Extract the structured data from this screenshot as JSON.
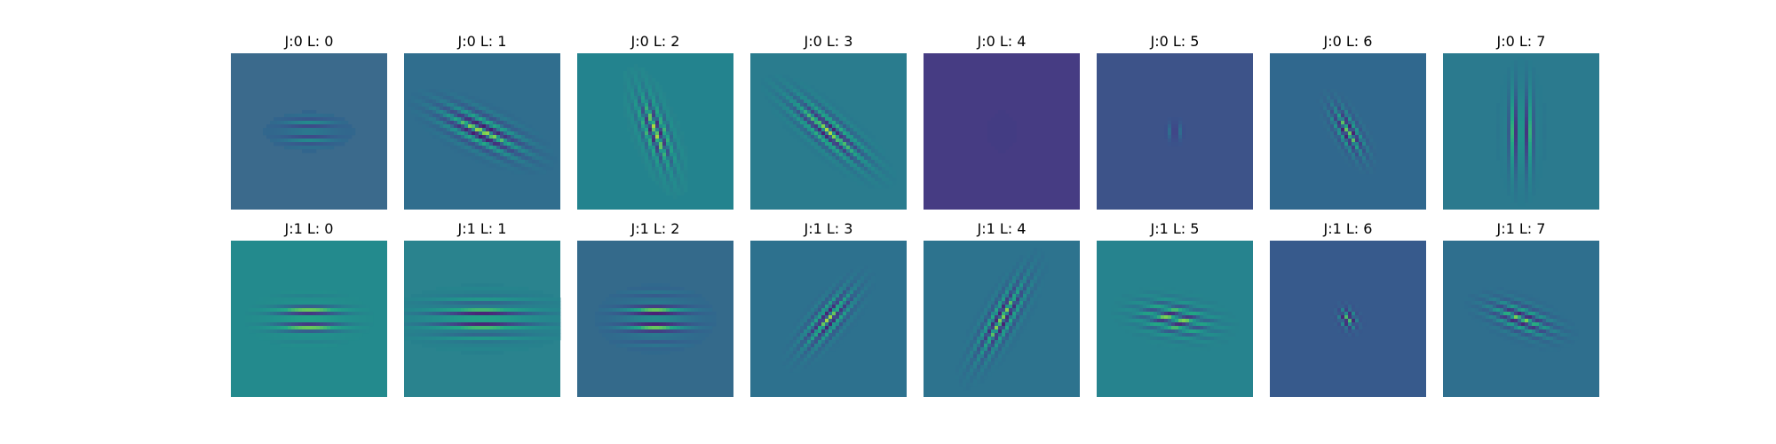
{
  "chart_data": {
    "type": "heatmap",
    "colormap": "viridis",
    "axes": "off",
    "panels": [
      {
        "title": "J:0 L: 0",
        "bg": "#3b6a8c",
        "filter": {
          "angle_deg": 0,
          "sigma_along": 18,
          "sigma_across": 8,
          "wavelength": 9,
          "amplitude": 0.85
        }
      },
      {
        "title": "J:0 L: 1",
        "bg": "#306e8e",
        "filter": {
          "angle_deg": 25,
          "sigma_along": 32,
          "sigma_across": 12,
          "wavelength": 12,
          "amplitude": 0.9
        }
      },
      {
        "title": "J:0 L: 2",
        "bg": "#23838e",
        "filter": {
          "angle_deg": 70,
          "sigma_along": 28,
          "sigma_across": 10,
          "wavelength": 10,
          "amplitude": 0.85
        }
      },
      {
        "title": "J:0 L: 3",
        "bg": "#2a7c8e",
        "filter": {
          "angle_deg": 40,
          "sigma_along": 34,
          "sigma_across": 11,
          "wavelength": 11,
          "amplitude": 0.85
        }
      },
      {
        "title": "J:0 L: 4",
        "bg": "#463c83",
        "filter": {
          "angle_deg": 90,
          "sigma_along": 8,
          "sigma_across": 6,
          "wavelength": 8,
          "amplitude": 0.95
        }
      },
      {
        "title": "J:0 L: 5",
        "bg": "#3d5389",
        "filter": {
          "angle_deg": 90,
          "sigma_along": 6,
          "sigma_across": 4,
          "wavelength": 7,
          "amplitude": 0.95
        }
      },
      {
        "title": "J:0 L: 6",
        "bg": "#30688e",
        "filter": {
          "angle_deg": 60,
          "sigma_along": 20,
          "sigma_across": 8,
          "wavelength": 9,
          "amplitude": 0.85
        }
      },
      {
        "title": "J:0 L: 7",
        "bg": "#2b7a8e",
        "filter": {
          "angle_deg": 90,
          "sigma_along": 30,
          "sigma_across": 10,
          "wavelength": 10,
          "amplitude": 0.9
        }
      },
      {
        "title": "J:1 L: 0",
        "bg": "#238a8d",
        "filter": {
          "angle_deg": 0,
          "sigma_along": 26,
          "sigma_across": 12,
          "wavelength": 10,
          "amplitude": 0.9
        }
      },
      {
        "title": "J:1 L: 1",
        "bg": "#2a838e",
        "filter": {
          "angle_deg": 0,
          "sigma_along": 38,
          "sigma_across": 14,
          "wavelength": 11,
          "amplitude": 0.85
        }
      },
      {
        "title": "J:1 L: 2",
        "bg": "#346a8b",
        "filter": {
          "angle_deg": 0,
          "sigma_along": 24,
          "sigma_across": 14,
          "wavelength": 10,
          "amplitude": 0.95
        }
      },
      {
        "title": "J:1 L: 3",
        "bg": "#2d718e",
        "filter": {
          "angle_deg": -50,
          "sigma_along": 26,
          "sigma_across": 10,
          "wavelength": 10,
          "amplitude": 0.85
        }
      },
      {
        "title": "J:1 L: 4",
        "bg": "#2d738e",
        "filter": {
          "angle_deg": -60,
          "sigma_along": 32,
          "sigma_across": 10,
          "wavelength": 10,
          "amplitude": 0.85
        }
      },
      {
        "title": "J:1 L: 5",
        "bg": "#26838e",
        "filter": {
          "angle_deg": 10,
          "sigma_along": 26,
          "sigma_across": 12,
          "wavelength": 10,
          "amplitude": 0.8
        }
      },
      {
        "title": "J:1 L: 6",
        "bg": "#375a8c",
        "filter": {
          "angle_deg": 60,
          "sigma_along": 8,
          "sigma_across": 6,
          "wavelength": 8,
          "amplitude": 0.9
        }
      },
      {
        "title": "J:1 L: 7",
        "bg": "#2f6f8e",
        "filter": {
          "angle_deg": 20,
          "sigma_along": 24,
          "sigma_across": 10,
          "wavelength": 10,
          "amplitude": 0.8
        }
      }
    ]
  }
}
